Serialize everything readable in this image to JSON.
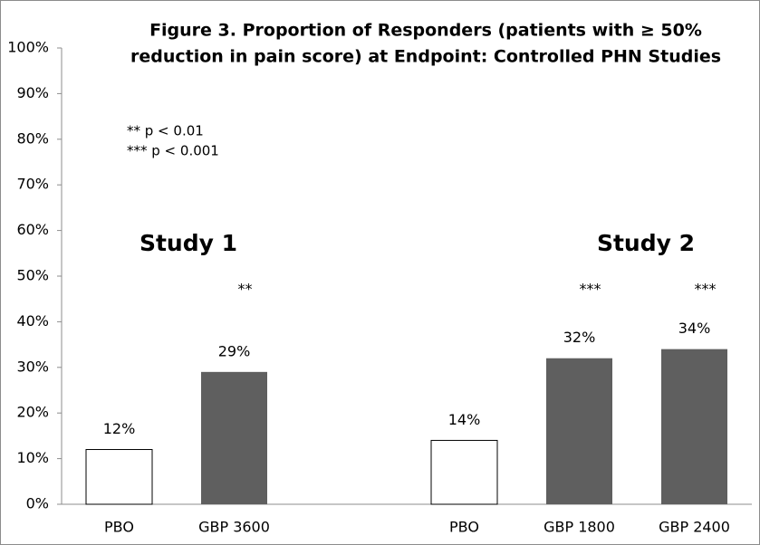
{
  "chart_data": {
    "type": "bar",
    "title": [
      "Figure 3. Proportion of Responders (patients with ≥ 50%",
      "reduction in pain score) at Endpoint: Controlled PHN Studies"
    ],
    "categories": [
      "PBO",
      "GBP 3600",
      null,
      "PBO",
      "GBP 1800",
      "GBP 2400"
    ],
    "values": [
      12,
      29,
      null,
      14,
      32,
      34
    ],
    "value_labels": [
      "12%",
      "29%",
      null,
      "14%",
      "32%",
      "34%"
    ],
    "significance": [
      null,
      "**",
      null,
      null,
      "***",
      "***"
    ],
    "colors": [
      "#ffffff",
      "#5f5f5f",
      null,
      "#ffffff",
      "#5f5f5f",
      "#5f5f5f"
    ],
    "groups": [
      "Study 1",
      "Study 2"
    ],
    "notes": [
      "** p < 0.01",
      "*** p < 0.001"
    ],
    "ylim": [
      0,
      100
    ],
    "yticks": [
      {
        "value": 0,
        "label": "0%"
      },
      {
        "value": 10,
        "label": "10%"
      },
      {
        "value": 20,
        "label": "20%"
      },
      {
        "value": 30,
        "label": "30%"
      },
      {
        "value": 40,
        "label": "40%"
      },
      {
        "value": 50,
        "label": "50%"
      },
      {
        "value": 60,
        "label": "60%"
      },
      {
        "value": 70,
        "label": "70%"
      },
      {
        "value": 80,
        "label": "80%"
      },
      {
        "value": 90,
        "label": "90%"
      },
      {
        "value": 100,
        "label": "100%"
      }
    ]
  }
}
